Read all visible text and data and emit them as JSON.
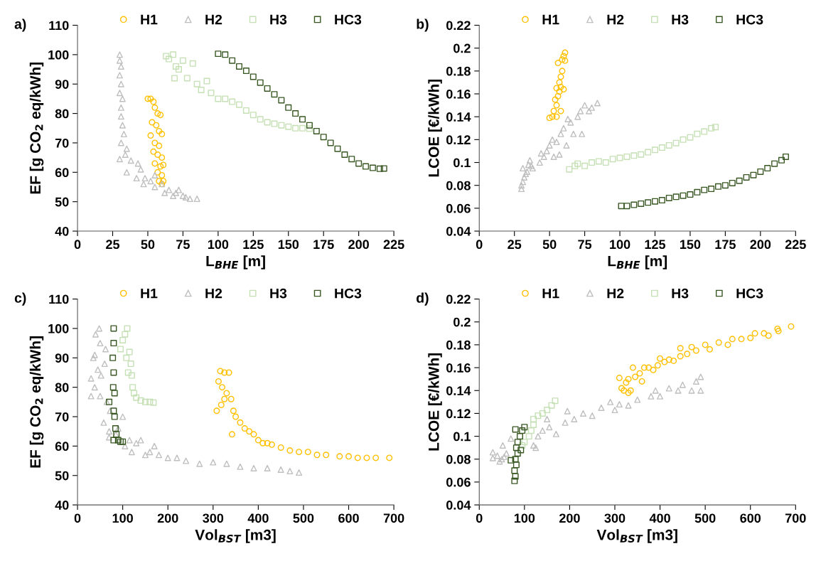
{
  "chart_data": [
    {
      "type": "scatter",
      "title": "a)",
      "xlabel": "L$_{BHE}$ [m]",
      "ylabel": "EF [g CO$_{2}$ eq/kWh]",
      "xlim": [
        0,
        225
      ],
      "xticks": [
        0,
        25,
        50,
        75,
        100,
        125,
        150,
        175,
        200,
        225
      ],
      "ylim": [
        40,
        110
      ],
      "yticks": [
        40,
        50,
        60,
        70,
        80,
        90,
        100,
        110
      ],
      "legend": "top",
      "grid": false,
      "series": [
        {
          "name": "H1",
          "color": "#ffc000",
          "marker": "circle",
          "x": [
            50,
            52,
            54,
            55,
            57,
            59,
            53,
            56,
            58,
            60,
            52,
            55,
            58,
            54,
            57,
            60,
            55,
            59,
            61,
            57,
            60,
            58,
            60,
            61
          ],
          "values": [
            85,
            85,
            84,
            82,
            80,
            79.5,
            77,
            76,
            74,
            73,
            72.5,
            70,
            69,
            67,
            66,
            65,
            63,
            62,
            62.5,
            60,
            59,
            57,
            56,
            57
          ]
        },
        {
          "name": "H2",
          "color": "#bfbfbf",
          "marker": "triangle",
          "x": [
            30,
            30,
            31,
            30,
            31,
            30,
            32,
            31,
            31,
            32,
            33,
            31,
            35,
            34,
            30,
            38,
            35,
            43,
            45,
            42,
            48,
            47,
            52,
            55,
            55,
            60,
            62,
            65,
            68,
            70,
            72,
            75,
            77,
            80,
            85
          ],
          "values": [
            100,
            98,
            96,
            93,
            90,
            87,
            85,
            82,
            79,
            76,
            73,
            70,
            68,
            66,
            64.5,
            64,
            60,
            63,
            61,
            58,
            58,
            56,
            57,
            55,
            59,
            56,
            53,
            54,
            52,
            53,
            54,
            52,
            51.5,
            51,
            51
          ]
        },
        {
          "name": "H3",
          "color": "#c5e0b4",
          "marker": "square",
          "x": [
            63,
            68,
            65,
            70,
            75,
            72,
            69,
            78,
            82,
            85,
            88,
            92,
            95,
            100,
            105,
            110,
            115,
            120,
            125,
            130,
            135,
            140,
            145,
            150,
            155,
            160,
            165
          ],
          "values": [
            99.5,
            100,
            98.5,
            96,
            98,
            95,
            92,
            92,
            97,
            90,
            88,
            91,
            87,
            85,
            85,
            84,
            83,
            81,
            79.5,
            78,
            77,
            76.5,
            76,
            75.5,
            75,
            75,
            74.8
          ]
        },
        {
          "name": "HC3",
          "color": "#385723",
          "marker": "square",
          "x": [
            100,
            105,
            110,
            115,
            120,
            125,
            130,
            135,
            140,
            145,
            150,
            155,
            160,
            165,
            170,
            175,
            180,
            185,
            190,
            195,
            200,
            205,
            210,
            215,
            218
          ],
          "values": [
            100.3,
            100,
            98,
            96,
            94.5,
            92.5,
            90.5,
            88.5,
            86.5,
            84.5,
            82,
            80,
            78,
            76,
            74,
            72,
            70,
            68,
            66,
            64.5,
            63,
            62,
            61.5,
            61.2,
            61.3
          ]
        }
      ]
    },
    {
      "type": "scatter",
      "title": "b)",
      "xlabel": "L$_{BHE}$ [m]",
      "ylabel": "LCOE [€/kWh]",
      "xlim": [
        0,
        225
      ],
      "xticks": [
        0,
        25,
        50,
        75,
        100,
        125,
        150,
        175,
        200,
        225
      ],
      "ylim": [
        0.04,
        0.22
      ],
      "yticks": [
        0.04,
        0.06,
        0.08,
        0.1,
        0.12,
        0.14,
        0.16,
        0.18,
        0.2,
        0.22
      ],
      "legend": "top",
      "grid": false,
      "series": [
        {
          "name": "H1",
          "color": "#ffc000",
          "marker": "circle",
          "x": [
            50,
            52,
            55,
            53,
            55,
            54,
            56,
            57,
            55,
            58,
            57,
            58,
            59,
            56,
            59,
            61,
            60,
            61,
            58,
            60
          ],
          "values": [
            0.139,
            0.14,
            0.14,
            0.145,
            0.15,
            0.155,
            0.158,
            0.162,
            0.165,
            0.166,
            0.17,
            0.175,
            0.18,
            0.187,
            0.19,
            0.189,
            0.193,
            0.196,
            0.145,
            0.164
          ]
        },
        {
          "name": "H2",
          "color": "#bfbfbf",
          "marker": "triangle",
          "x": [
            30,
            30,
            31,
            32,
            33,
            31,
            34,
            35,
            36,
            37,
            38,
            43,
            44,
            46,
            48,
            50,
            52,
            53,
            55,
            57,
            58,
            60,
            62,
            63,
            65,
            67,
            70,
            72,
            73,
            75,
            78,
            80,
            84
          ],
          "values": [
            0.077,
            0.08,
            0.083,
            0.087,
            0.09,
            0.095,
            0.092,
            0.098,
            0.102,
            0.097,
            0.095,
            0.1,
            0.108,
            0.105,
            0.11,
            0.115,
            0.12,
            0.105,
            0.118,
            0.107,
            0.125,
            0.13,
            0.115,
            0.138,
            0.135,
            0.125,
            0.14,
            0.145,
            0.125,
            0.15,
            0.145,
            0.148,
            0.152
          ]
        },
        {
          "name": "H3",
          "color": "#c5e0b4",
          "marker": "square",
          "x": [
            64,
            68,
            70,
            75,
            80,
            85,
            90,
            95,
            100,
            105,
            110,
            115,
            120,
            125,
            130,
            135,
            140,
            145,
            150,
            155,
            160,
            165,
            168
          ],
          "values": [
            0.094,
            0.097,
            0.099,
            0.097,
            0.1,
            0.101,
            0.1,
            0.103,
            0.104,
            0.105,
            0.106,
            0.107,
            0.109,
            0.111,
            0.113,
            0.115,
            0.117,
            0.12,
            0.122,
            0.125,
            0.127,
            0.13,
            0.131
          ]
        },
        {
          "name": "HC3",
          "color": "#385723",
          "marker": "square",
          "x": [
            101,
            105,
            110,
            115,
            120,
            125,
            130,
            135,
            140,
            145,
            150,
            155,
            160,
            165,
            170,
            175,
            180,
            185,
            190,
            195,
            200,
            205,
            210,
            215,
            218
          ],
          "values": [
            0.062,
            0.062,
            0.063,
            0.064,
            0.065,
            0.066,
            0.067,
            0.069,
            0.07,
            0.071,
            0.072,
            0.074,
            0.076,
            0.077,
            0.079,
            0.08,
            0.082,
            0.084,
            0.087,
            0.089,
            0.092,
            0.095,
            0.099,
            0.102,
            0.105
          ]
        }
      ]
    },
    {
      "type": "scatter",
      "title": "c)",
      "xlabel": "Vol$_{BST}$ [m3]",
      "ylabel": "EF [g CO$_{2}$ eq/kWh]",
      "xlim": [
        0,
        700
      ],
      "xticks": [
        0,
        100,
        200,
        300,
        400,
        500,
        600,
        700
      ],
      "ylim": [
        40,
        110
      ],
      "yticks": [
        40,
        50,
        60,
        70,
        80,
        90,
        100,
        110
      ],
      "legend": "top",
      "grid": false,
      "series": [
        {
          "name": "H1",
          "color": "#ffc000",
          "marker": "circle",
          "x": [
            316,
            325,
            335,
            312,
            320,
            330,
            308,
            318,
            325,
            340,
            345,
            350,
            360,
            370,
            380,
            342,
            390,
            400,
            410,
            420,
            430,
            450,
            470,
            490,
            510,
            530,
            550,
            580,
            600,
            620,
            640,
            660,
            690
          ],
          "values": [
            85.5,
            85,
            85,
            82,
            80,
            78,
            72,
            74,
            76,
            76,
            72,
            70,
            68,
            66,
            65,
            64,
            64,
            62,
            61,
            61,
            60.5,
            59.5,
            58.5,
            58,
            58,
            57,
            57,
            56.5,
            56.5,
            56,
            56,
            56,
            56
          ]
        },
        {
          "name": "H2",
          "color": "#bfbfbf",
          "marker": "triangle",
          "x": [
            30,
            30,
            35,
            38,
            40,
            48,
            50,
            45,
            38,
            50,
            52,
            58,
            60,
            62,
            65,
            70,
            72,
            70,
            85,
            90,
            100,
            105,
            115,
            120,
            130,
            140,
            150,
            160,
            170,
            180,
            200,
            220,
            240,
            270,
            300,
            330,
            360,
            390,
            420,
            450,
            470,
            490
          ],
          "values": [
            83,
            77,
            90,
            91,
            98,
            100,
            95,
            86,
            80,
            77,
            84,
            68,
            88,
            93,
            75,
            65,
            72,
            63,
            64,
            66,
            70,
            60,
            62,
            58,
            61,
            62,
            57,
            58,
            60,
            57,
            56,
            56,
            55,
            54,
            54.5,
            54,
            53,
            52.5,
            52.5,
            52,
            51.5,
            51
          ]
        },
        {
          "name": "H3",
          "color": "#c5e0b4",
          "marker": "square",
          "x": [
            95,
            100,
            105,
            110,
            108,
            112,
            115,
            118,
            120,
            122,
            125,
            130,
            140,
            150,
            160,
            168
          ],
          "values": [
            93,
            96,
            98,
            100,
            90,
            85,
            92,
            88,
            84,
            80,
            78,
            76.5,
            75.5,
            75,
            75,
            74.8
          ]
        },
        {
          "name": "HC3",
          "color": "#385723",
          "marker": "square",
          "x": [
            80,
            80,
            78,
            80,
            79,
            82,
            70,
            80,
            82,
            84,
            86,
            90,
            95,
            100,
            80
          ],
          "values": [
            100,
            95,
            90,
            85,
            80,
            78,
            75,
            72,
            70,
            66,
            64,
            62,
            61.5,
            61.5,
            62
          ]
        }
      ]
    },
    {
      "type": "scatter",
      "title": "d)",
      "xlabel": "Vol$_{BST}$ [m3]",
      "ylabel": "LCOE [€/kWh]",
      "xlim": [
        0,
        700
      ],
      "xticks": [
        0,
        100,
        200,
        300,
        400,
        500,
        600,
        700
      ],
      "ylim": [
        0.04,
        0.22
      ],
      "yticks": [
        0.04,
        0.06,
        0.08,
        0.1,
        0.12,
        0.14,
        0.16,
        0.18,
        0.2,
        0.22
      ],
      "legend": "top",
      "grid": false,
      "series": [
        {
          "name": "H1",
          "color": "#ffc000",
          "marker": "circle",
          "x": [
            310,
            315,
            320,
            330,
            335,
            325,
            330,
            340,
            345,
            355,
            360,
            365,
            375,
            385,
            395,
            400,
            410,
            420,
            430,
            445,
            445,
            460,
            470,
            480,
            500,
            510,
            530,
            550,
            560,
            580,
            600,
            610,
            630,
            640,
            660,
            662,
            690
          ],
          "values": [
            0.151,
            0.142,
            0.14,
            0.138,
            0.14,
            0.147,
            0.15,
            0.16,
            0.152,
            0.155,
            0.148,
            0.16,
            0.16,
            0.158,
            0.162,
            0.168,
            0.165,
            0.167,
            0.166,
            0.17,
            0.177,
            0.172,
            0.178,
            0.175,
            0.18,
            0.176,
            0.182,
            0.18,
            0.185,
            0.185,
            0.186,
            0.19,
            0.19,
            0.188,
            0.194,
            0.192,
            0.196
          ]
        },
        {
          "name": "H2",
          "color": "#bfbfbf",
          "marker": "triangle",
          "x": [
            30,
            30,
            40,
            45,
            50,
            55,
            52,
            60,
            70,
            125,
            120,
            130,
            140,
            150,
            155,
            170,
            190,
            195,
            210,
            230,
            250,
            270,
            290,
            300,
            310,
            330,
            350,
            380,
            390,
            400,
            420,
            440,
            450,
            470,
            480,
            490,
            490
          ],
          "values": [
            0.086,
            0.081,
            0.083,
            0.078,
            0.08,
            0.082,
            0.092,
            0.085,
            0.098,
            0.09,
            0.092,
            0.1,
            0.105,
            0.115,
            0.108,
            0.102,
            0.112,
            0.122,
            0.115,
            0.12,
            0.118,
            0.125,
            0.13,
            0.123,
            0.128,
            0.127,
            0.132,
            0.135,
            0.14,
            0.135,
            0.142,
            0.14,
            0.145,
            0.14,
            0.148,
            0.152,
            0.14
          ]
        },
        {
          "name": "H3",
          "color": "#c5e0b4",
          "marker": "square",
          "x": [
            95,
            100,
            110,
            115,
            120,
            120,
            130,
            140,
            150,
            160,
            168
          ],
          "values": [
            0.092,
            0.095,
            0.1,
            0.105,
            0.11,
            0.115,
            0.118,
            0.12,
            0.123,
            0.127,
            0.131
          ]
        },
        {
          "name": "HC3",
          "color": "#385723",
          "marker": "square",
          "x": [
            78,
            80,
            78,
            82,
            70,
            80,
            85,
            92,
            82,
            85,
            90,
            95,
            100,
            80
          ],
          "values": [
            0.061,
            0.065,
            0.07,
            0.075,
            0.079,
            0.08,
            0.085,
            0.088,
            0.09,
            0.095,
            0.1,
            0.105,
            0.108,
            0.106
          ]
        }
      ]
    }
  ]
}
